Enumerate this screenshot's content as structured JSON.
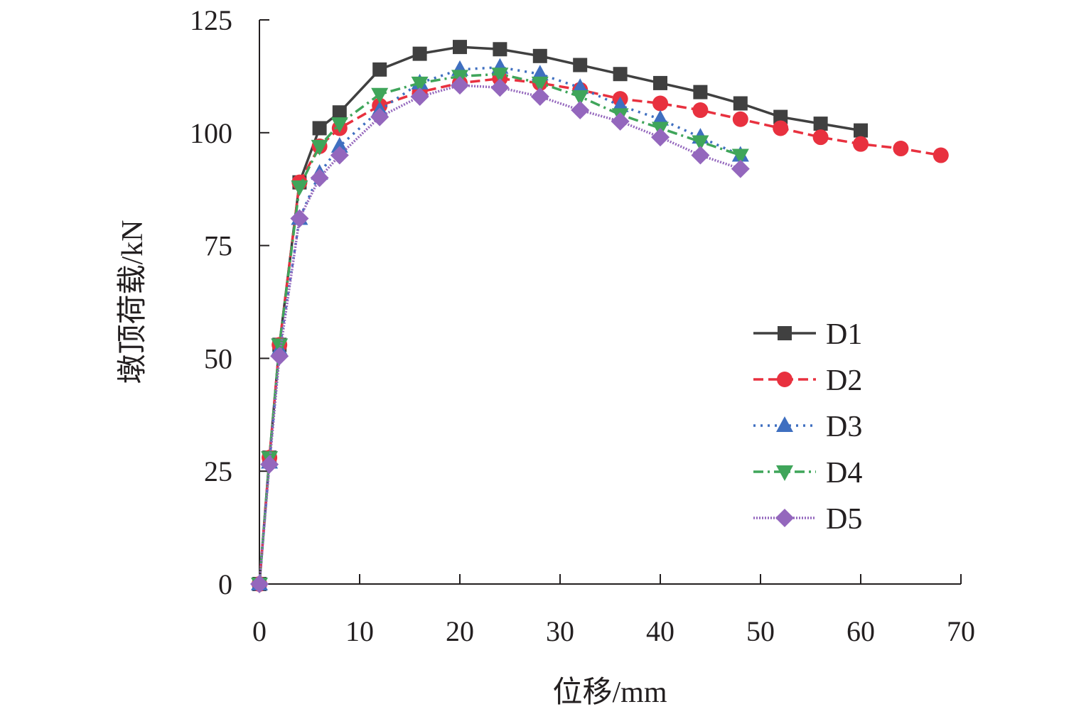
{
  "chart_data": {
    "type": "line",
    "title": "",
    "xlabel": "位移/mm",
    "ylabel": "墩顶荷载/kN",
    "xlim": [
      0,
      70
    ],
    "ylim": [
      0,
      125
    ],
    "xticks": [
      0,
      10,
      20,
      30,
      40,
      50,
      60,
      70
    ],
    "yticks": [
      0,
      25,
      50,
      75,
      100,
      125
    ],
    "grid": false,
    "legend_position": "right-center",
    "series": [
      {
        "name": "D1",
        "color": "#404040",
        "line_style": "solid",
        "marker": "square",
        "x": [
          0,
          1,
          2,
          4,
          6,
          8,
          12,
          16,
          20,
          24,
          28,
          32,
          36,
          40,
          44,
          48,
          52,
          56,
          60
        ],
        "y": [
          0,
          28,
          53,
          89,
          101,
          104.5,
          114,
          117.5,
          119,
          118.5,
          117,
          115,
          113,
          111,
          109,
          106.5,
          103.5,
          102,
          100.5
        ]
      },
      {
        "name": "D2",
        "color": "#e8313f",
        "line_style": "dashed",
        "marker": "circle",
        "x": [
          0,
          1,
          2,
          4,
          6,
          8,
          12,
          16,
          20,
          24,
          28,
          32,
          36,
          40,
          44,
          48,
          52,
          56,
          60,
          64,
          68
        ],
        "y": [
          0,
          28,
          53,
          89,
          97,
          101,
          106,
          109,
          111,
          112,
          111,
          109.5,
          107.5,
          106.5,
          105,
          103,
          101,
          99,
          97.5,
          96.5,
          95
        ]
      },
      {
        "name": "D3",
        "color": "#3f6fc0",
        "line_style": "dotted",
        "marker": "triangle-up",
        "x": [
          0,
          1,
          2,
          4,
          6,
          8,
          12,
          16,
          20,
          24,
          28,
          32,
          36,
          40,
          44,
          48
        ],
        "y": [
          0,
          27,
          52,
          81,
          91,
          97,
          105,
          111,
          114,
          114.5,
          113,
          110,
          106,
          103,
          99,
          95
        ]
      },
      {
        "name": "D4",
        "color": "#3fa55a",
        "line_style": "dash-dot",
        "marker": "triangle-down",
        "x": [
          0,
          1,
          2,
          4,
          6,
          8,
          12,
          16,
          20,
          24,
          28,
          32,
          36,
          40,
          44,
          48
        ],
        "y": [
          0,
          28,
          53,
          88,
          97,
          102,
          108.5,
          111,
          112.5,
          113,
          111,
          108,
          104,
          101,
          98,
          95
        ]
      },
      {
        "name": "D5",
        "color": "#9467bd",
        "line_style": "fine-dotted",
        "marker": "diamond",
        "x": [
          0,
          1,
          2,
          4,
          6,
          8,
          12,
          16,
          20,
          24,
          28,
          32,
          36,
          40,
          44,
          48
        ],
        "y": [
          0,
          26.5,
          50.5,
          81,
          90,
          95,
          103.5,
          108,
          110.5,
          110,
          108,
          105,
          102.5,
          99,
          95,
          92
        ]
      }
    ]
  }
}
